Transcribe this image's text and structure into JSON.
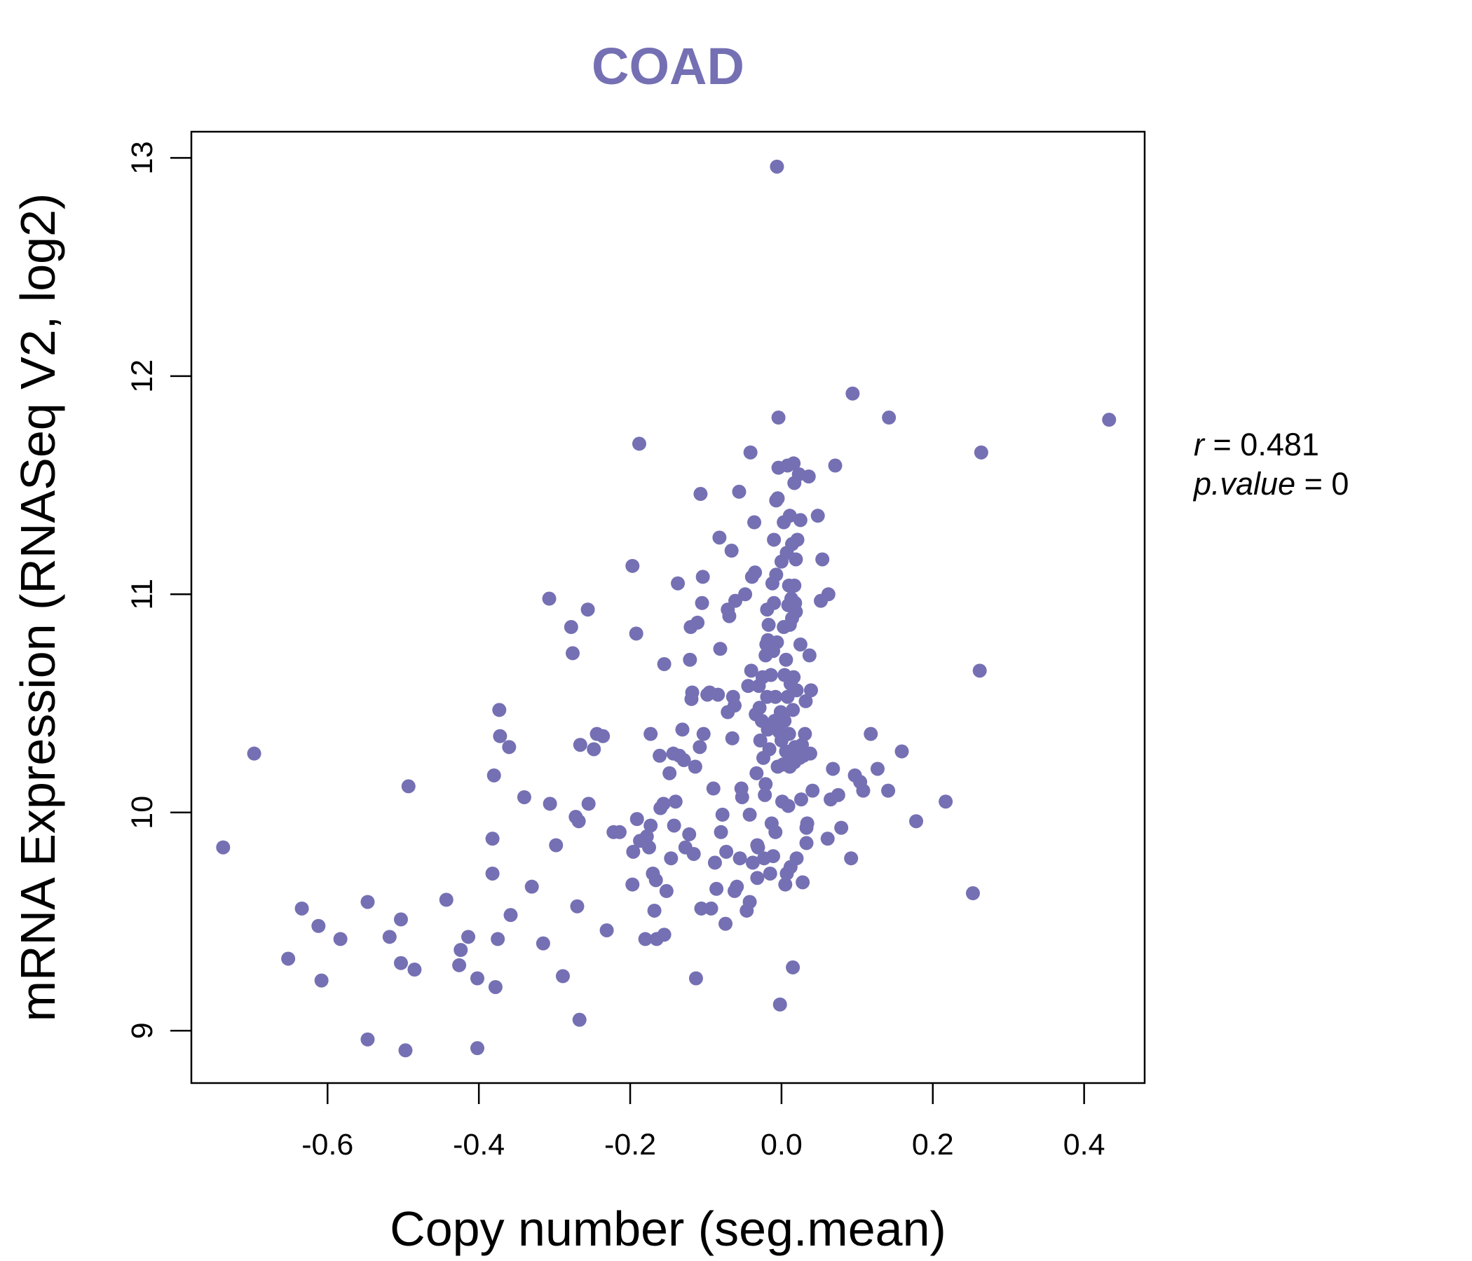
{
  "chart_data": {
    "type": "scatter",
    "title": "COAD",
    "xlabel": "Copy number (seg.mean)",
    "ylabel": "mRNA Expression (RNASeq V2, log2)",
    "xlim": [
      -0.78,
      0.48
    ],
    "ylim": [
      8.76,
      13.12
    ],
    "x_ticks": [
      "-0.6",
      "-0.4",
      "-0.2",
      "0.0",
      "0.2",
      "0.4"
    ],
    "x_tick_values": [
      -0.6,
      -0.4,
      -0.2,
      0.0,
      0.2,
      0.4
    ],
    "y_ticks": [
      "9",
      "10",
      "11",
      "12",
      "13"
    ],
    "y_tick_values": [
      9,
      10,
      11,
      12,
      13
    ],
    "grid": false,
    "point_color": "#7570b3",
    "stats": {
      "r_label": "r",
      "r_value": "0.481",
      "p_label": "p.value",
      "p_value": "0"
    },
    "points": [
      [
        -0.738,
        9.84
      ],
      [
        -0.697,
        10.27
      ],
      [
        -0.652,
        9.33
      ],
      [
        -0.634,
        9.56
      ],
      [
        -0.612,
        9.48
      ],
      [
        -0.608,
        9.23
      ],
      [
        -0.583,
        9.42
      ],
      [
        -0.547,
        9.59
      ],
      [
        -0.547,
        8.96
      ],
      [
        -0.518,
        9.43
      ],
      [
        -0.503,
        9.51
      ],
      [
        -0.503,
        9.31
      ],
      [
        -0.497,
        8.91
      ],
      [
        -0.493,
        10.12
      ],
      [
        -0.485,
        9.28
      ],
      [
        -0.443,
        9.6
      ],
      [
        -0.424,
        9.37
      ],
      [
        -0.426,
        9.3
      ],
      [
        -0.414,
        9.43
      ],
      [
        -0.402,
        9.24
      ],
      [
        -0.402,
        8.92
      ],
      [
        -0.382,
        9.88
      ],
      [
        -0.382,
        9.72
      ],
      [
        -0.38,
        10.17
      ],
      [
        -0.378,
        9.2
      ],
      [
        -0.375,
        9.42
      ],
      [
        -0.373,
        10.47
      ],
      [
        -0.372,
        10.35
      ],
      [
        -0.36,
        10.3
      ],
      [
        -0.358,
        9.53
      ],
      [
        -0.34,
        10.07
      ],
      [
        -0.33,
        9.66
      ],
      [
        -0.315,
        9.4
      ],
      [
        -0.307,
        10.98
      ],
      [
        -0.306,
        10.04
      ],
      [
        -0.298,
        9.85
      ],
      [
        -0.289,
        9.25
      ],
      [
        -0.278,
        10.85
      ],
      [
        -0.276,
        10.73
      ],
      [
        -0.272,
        9.98
      ],
      [
        -0.27,
        9.57
      ],
      [
        -0.267,
        9.05
      ],
      [
        -0.266,
        10.31
      ],
      [
        -0.268,
        9.96
      ],
      [
        -0.256,
        10.93
      ],
      [
        -0.255,
        10.04
      ],
      [
        -0.248,
        10.29
      ],
      [
        -0.244,
        10.36
      ],
      [
        -0.236,
        10.35
      ],
      [
        -0.231,
        9.46
      ],
      [
        -0.222,
        9.91
      ],
      [
        -0.214,
        9.91
      ],
      [
        -0.197,
        11.13
      ],
      [
        -0.197,
        9.67
      ],
      [
        -0.196,
        9.82
      ],
      [
        -0.192,
        10.82
      ],
      [
        -0.191,
        9.97
      ],
      [
        -0.188,
        11.69
      ],
      [
        -0.187,
        9.87
      ],
      [
        -0.18,
        9.42
      ],
      [
        -0.178,
        9.89
      ],
      [
        -0.175,
        9.84
      ],
      [
        -0.173,
        10.36
      ],
      [
        -0.173,
        9.94
      ],
      [
        -0.17,
        9.72
      ],
      [
        -0.168,
        9.55
      ],
      [
        -0.166,
        9.69
      ],
      [
        -0.165,
        9.42
      ],
      [
        -0.161,
        10.26
      ],
      [
        -0.16,
        10.02
      ],
      [
        -0.156,
        10.04
      ],
      [
        -0.155,
        10.68
      ],
      [
        -0.155,
        9.44
      ],
      [
        -0.152,
        9.64
      ],
      [
        -0.148,
        10.18
      ],
      [
        -0.146,
        9.79
      ],
      [
        -0.143,
        10.27
      ],
      [
        -0.142,
        9.94
      ],
      [
        -0.14,
        10.05
      ],
      [
        -0.137,
        11.05
      ],
      [
        -0.135,
        10.26
      ],
      [
        -0.131,
        10.38
      ],
      [
        -0.129,
        10.24
      ],
      [
        -0.127,
        9.84
      ],
      [
        -0.122,
        9.9
      ],
      [
        -0.121,
        10.7
      ],
      [
        -0.12,
        10.85
      ],
      [
        -0.119,
        10.52
      ],
      [
        -0.118,
        10.55
      ],
      [
        -0.116,
        9.81
      ],
      [
        -0.114,
        10.21
      ],
      [
        -0.113,
        9.24
      ],
      [
        -0.111,
        10.87
      ],
      [
        -0.108,
        10.3
      ],
      [
        -0.107,
        11.46
      ],
      [
        -0.106,
        9.56
      ],
      [
        -0.105,
        10.96
      ],
      [
        -0.104,
        11.08
      ],
      [
        -0.103,
        10.36
      ],
      [
        -0.098,
        10.54
      ],
      [
        -0.095,
        10.55
      ],
      [
        -0.093,
        9.56
      ],
      [
        -0.09,
        10.11
      ],
      [
        -0.088,
        9.77
      ],
      [
        -0.086,
        9.65
      ],
      [
        -0.084,
        10.54
      ],
      [
        -0.082,
        11.26
      ],
      [
        -0.081,
        10.75
      ],
      [
        -0.08,
        9.91
      ],
      [
        -0.078,
        9.99
      ],
      [
        -0.074,
        9.49
      ],
      [
        -0.073,
        9.82
      ],
      [
        -0.071,
        10.93
      ],
      [
        -0.071,
        10.46
      ],
      [
        -0.069,
        10.9
      ],
      [
        -0.066,
        11.2
      ],
      [
        -0.065,
        10.34
      ],
      [
        -0.064,
        10.53
      ],
      [
        -0.062,
        10.49
      ],
      [
        -0.062,
        9.64
      ],
      [
        -0.061,
        10.97
      ],
      [
        -0.059,
        9.66
      ],
      [
        -0.056,
        11.47
      ],
      [
        -0.055,
        9.79
      ],
      [
        -0.053,
        10.11
      ],
      [
        -0.052,
        10.07
      ],
      [
        -0.048,
        11.0
      ],
      [
        -0.046,
        9.55
      ],
      [
        -0.044,
        10.58
      ],
      [
        -0.042,
        9.99
      ],
      [
        -0.042,
        9.59
      ],
      [
        -0.041,
        11.65
      ],
      [
        -0.04,
        10.65
      ],
      [
        -0.039,
        11.08
      ],
      [
        -0.038,
        9.77
      ],
      [
        -0.036,
        11.33
      ],
      [
        -0.035,
        11.1
      ],
      [
        -0.034,
        10.45
      ],
      [
        -0.033,
        10.18
      ],
      [
        -0.032,
        9.85
      ],
      [
        -0.032,
        9.7
      ],
      [
        -0.031,
        9.84
      ],
      [
        -0.03,
        10.58
      ],
      [
        -0.029,
        10.48
      ],
      [
        -0.028,
        10.33
      ],
      [
        -0.026,
        10.42
      ],
      [
        -0.025,
        10.62
      ],
      [
        -0.024,
        10.25
      ],
      [
        -0.023,
        9.79
      ],
      [
        -0.022,
        10.08
      ],
      [
        -0.021,
        10.72
      ],
      [
        -0.021,
        10.13
      ],
      [
        -0.02,
        10.77
      ],
      [
        -0.019,
        10.93
      ],
      [
        -0.019,
        10.53
      ],
      [
        -0.018,
        10.79
      ],
      [
        -0.018,
        10.38
      ],
      [
        -0.017,
        10.86
      ],
      [
        -0.016,
        10.29
      ],
      [
        -0.015,
        9.72
      ],
      [
        -0.014,
        10.63
      ],
      [
        -0.013,
        9.95
      ],
      [
        -0.012,
        11.05
      ],
      [
        -0.011,
        10.74
      ],
      [
        -0.011,
        9.8
      ],
      [
        -0.01,
        11.25
      ],
      [
        -0.01,
        10.96
      ],
      [
        -0.009,
        10.42
      ],
      [
        -0.008,
        10.53
      ],
      [
        -0.008,
        9.91
      ],
      [
        -0.007,
        11.43
      ],
      [
        -0.007,
        11.09
      ],
      [
        -0.006,
        10.78
      ],
      [
        -0.006,
        12.96
      ],
      [
        -0.005,
        11.44
      ],
      [
        -0.005,
        10.21
      ],
      [
        -0.004,
        11.58
      ],
      [
        -0.004,
        11.81
      ],
      [
        -0.003,
        10.37
      ],
      [
        -0.002,
        9.12
      ],
      [
        -0.001,
        10.46
      ],
      [
        0.0,
        11.15
      ],
      [
        0.0,
        10.33
      ],
      [
        0.001,
        10.05
      ],
      [
        0.002,
        10.22
      ],
      [
        0.003,
        11.33
      ],
      [
        0.003,
        10.85
      ],
      [
        0.004,
        10.63
      ],
      [
        0.004,
        10.42
      ],
      [
        0.005,
        9.67
      ],
      [
        0.006,
        10.7
      ],
      [
        0.006,
        10.28
      ],
      [
        0.007,
        11.19
      ],
      [
        0.007,
        9.72
      ],
      [
        0.008,
        11.59
      ],
      [
        0.008,
        10.53
      ],
      [
        0.009,
        10.95
      ],
      [
        0.009,
        10.03
      ],
      [
        0.01,
        11.04
      ],
      [
        0.01,
        10.36
      ],
      [
        0.011,
        11.36
      ],
      [
        0.011,
        10.86
      ],
      [
        0.011,
        10.21
      ],
      [
        0.012,
        10.59
      ],
      [
        0.012,
        9.75
      ],
      [
        0.013,
        10.98
      ],
      [
        0.013,
        10.27
      ],
      [
        0.014,
        11.23
      ],
      [
        0.014,
        10.89
      ],
      [
        0.015,
        10.47
      ],
      [
        0.015,
        9.29
      ],
      [
        0.016,
        11.6
      ],
      [
        0.016,
        10.62
      ],
      [
        0.017,
        11.51
      ],
      [
        0.017,
        11.04
      ],
      [
        0.017,
        10.23
      ],
      [
        0.018,
        10.96
      ],
      [
        0.018,
        10.3
      ],
      [
        0.019,
        11.16
      ],
      [
        0.019,
        10.92
      ],
      [
        0.02,
        10.56
      ],
      [
        0.02,
        9.79
      ],
      [
        0.021,
        11.25
      ],
      [
        0.022,
        10.29
      ],
      [
        0.023,
        11.55
      ],
      [
        0.024,
        10.25
      ],
      [
        0.025,
        11.34
      ],
      [
        0.025,
        10.77
      ],
      [
        0.026,
        10.06
      ],
      [
        0.027,
        10.31
      ],
      [
        0.028,
        9.68
      ],
      [
        0.029,
        10.26
      ],
      [
        0.031,
        10.36
      ],
      [
        0.032,
        10.51
      ],
      [
        0.033,
        9.93
      ],
      [
        0.033,
        9.86
      ],
      [
        0.034,
        9.95
      ],
      [
        0.036,
        11.54
      ],
      [
        0.037,
        10.72
      ],
      [
        0.038,
        10.27
      ],
      [
        0.039,
        10.56
      ],
      [
        0.041,
        10.1
      ],
      [
        0.048,
        11.36
      ],
      [
        0.052,
        10.97
      ],
      [
        0.054,
        11.16
      ],
      [
        0.061,
        9.88
      ],
      [
        0.062,
        11.0
      ],
      [
        0.065,
        10.06
      ],
      [
        0.068,
        10.2
      ],
      [
        0.071,
        11.59
      ],
      [
        0.075,
        10.08
      ],
      [
        0.079,
        9.93
      ],
      [
        0.092,
        9.79
      ],
      [
        0.094,
        11.92
      ],
      [
        0.097,
        10.17
      ],
      [
        0.104,
        10.14
      ],
      [
        0.108,
        10.1
      ],
      [
        0.118,
        10.36
      ],
      [
        0.127,
        10.2
      ],
      [
        0.141,
        10.1
      ],
      [
        0.142,
        11.81
      ],
      [
        0.159,
        10.28
      ],
      [
        0.178,
        9.96
      ],
      [
        0.217,
        10.05
      ],
      [
        0.253,
        9.63
      ],
      [
        0.262,
        10.65
      ],
      [
        0.264,
        11.65
      ],
      [
        0.433,
        11.8
      ]
    ]
  }
}
